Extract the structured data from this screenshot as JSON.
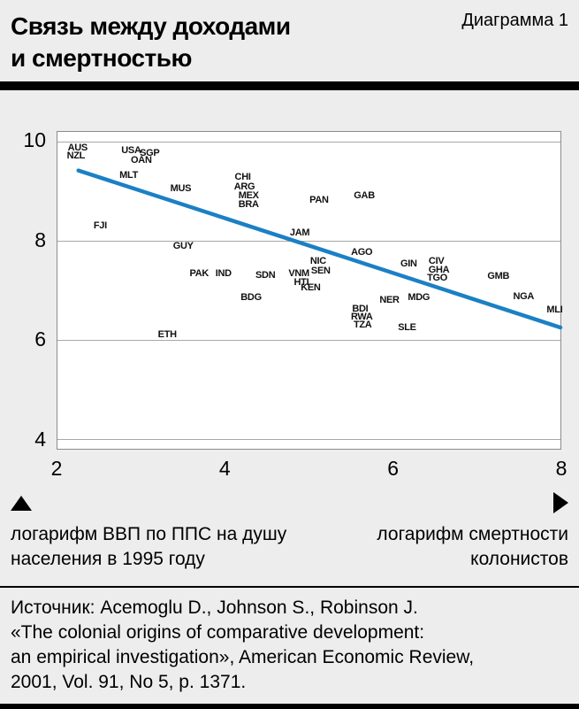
{
  "header": {
    "title_line1": "Связь между доходами",
    "title_line2": "и смертностью",
    "diagram_label": "Диаграмма 1"
  },
  "chart_data": {
    "type": "scatter",
    "title": "Связь между доходами и смертностью",
    "xlabel": "логарифм смертности колонистов",
    "ylabel": "логарифм ВВП по ППС на душу населения в 1995 году",
    "x_range": [
      2,
      8
    ],
    "y_range": [
      3.8,
      10.2
    ],
    "x_ticks": [
      2,
      4,
      6,
      8
    ],
    "y_ticks": [
      10,
      8,
      6,
      4
    ],
    "grid": "horizontal",
    "legend": "none",
    "trendline": {
      "x1": 2.25,
      "y1": 9.42,
      "x2": 8.0,
      "y2": 6.25
    },
    "points": [
      {
        "label": "AUS",
        "x": 2.24,
        "y": 9.88
      },
      {
        "label": "NZL",
        "x": 2.22,
        "y": 9.72
      },
      {
        "label": "USA",
        "x": 2.88,
        "y": 9.83
      },
      {
        "label": "SGP",
        "x": 3.1,
        "y": 9.77
      },
      {
        "label": "OAN",
        "x": 3.0,
        "y": 9.63
      },
      {
        "label": "MLT",
        "x": 2.85,
        "y": 9.33
      },
      {
        "label": "MUS",
        "x": 3.47,
        "y": 9.06
      },
      {
        "label": "CHI",
        "x": 4.21,
        "y": 9.29
      },
      {
        "label": "ARG",
        "x": 4.23,
        "y": 9.1
      },
      {
        "label": "MEX",
        "x": 4.28,
        "y": 8.92
      },
      {
        "label": "BRA",
        "x": 4.28,
        "y": 8.74
      },
      {
        "label": "PAN",
        "x": 5.12,
        "y": 8.83
      },
      {
        "label": "GAB",
        "x": 5.66,
        "y": 8.92
      },
      {
        "label": "FJI",
        "x": 2.51,
        "y": 8.3
      },
      {
        "label": "JAM",
        "x": 4.89,
        "y": 8.17
      },
      {
        "label": "GUY",
        "x": 3.5,
        "y": 7.89
      },
      {
        "label": "AGO",
        "x": 5.63,
        "y": 7.76
      },
      {
        "label": "NIC",
        "x": 5.11,
        "y": 7.59
      },
      {
        "label": "CIV",
        "x": 6.52,
        "y": 7.59
      },
      {
        "label": "GIN",
        "x": 6.19,
        "y": 7.53
      },
      {
        "label": "GHA",
        "x": 6.55,
        "y": 7.41
      },
      {
        "label": "SEN",
        "x": 5.14,
        "y": 7.39
      },
      {
        "label": "VNM",
        "x": 4.88,
        "y": 7.34
      },
      {
        "label": "PAK",
        "x": 3.69,
        "y": 7.34
      },
      {
        "label": "IND",
        "x": 3.98,
        "y": 7.34
      },
      {
        "label": "SDN",
        "x": 4.48,
        "y": 7.3
      },
      {
        "label": "TGO",
        "x": 6.53,
        "y": 7.25
      },
      {
        "label": "GMB",
        "x": 7.26,
        "y": 7.28
      },
      {
        "label": "HTI",
        "x": 4.91,
        "y": 7.16
      },
      {
        "label": "KEN",
        "x": 5.02,
        "y": 7.05
      },
      {
        "label": "NGA",
        "x": 7.56,
        "y": 6.88
      },
      {
        "label": "BDG",
        "x": 4.31,
        "y": 6.86
      },
      {
        "label": "MDG",
        "x": 6.31,
        "y": 6.86
      },
      {
        "label": "NER",
        "x": 5.96,
        "y": 6.8
      },
      {
        "label": "MLI",
        "x": 7.93,
        "y": 6.61
      },
      {
        "label": "BDI",
        "x": 5.61,
        "y": 6.63
      },
      {
        "label": "RWA",
        "x": 5.63,
        "y": 6.47
      },
      {
        "label": "TZA",
        "x": 5.64,
        "y": 6.31
      },
      {
        "label": "SLE",
        "x": 6.17,
        "y": 6.25
      },
      {
        "label": "ETH",
        "x": 3.31,
        "y": 6.11
      }
    ]
  },
  "axis_captions": {
    "left_line1": "логарифм ВВП по ППС на душу",
    "left_line2": "населения в 1995 году",
    "right_line1": "логарифм смертности",
    "right_line2": "колонистов"
  },
  "source": {
    "lines": [
      "Источник: Acemoglu D., Johnson S., Robinson J.",
      "«The colonial origins of comparative development:",
      "an empirical investigation», American Economic Review,",
      "2001, Vol. 91, No 5, p. 1371."
    ]
  },
  "colors": {
    "trend": "#1b80c4",
    "background": "#ededed",
    "plot_background": "#ffffff",
    "grid": "#a8a8a8",
    "bar": "#000000"
  }
}
